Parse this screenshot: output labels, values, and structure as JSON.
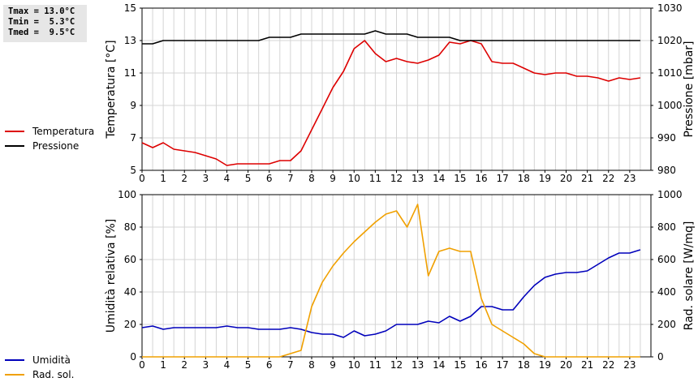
{
  "stats": {
    "tmax": "Tmax = 13.0°C",
    "tmin": "Tmin =  5.3°C",
    "tmed": "Tmed =  9.5°C"
  },
  "legends": {
    "top": [
      {
        "label": "Temperatura",
        "color": "#dd0000"
      },
      {
        "label": "Pressione",
        "color": "#000000"
      }
    ],
    "bottom": [
      {
        "label": "Umidità",
        "color": "#0000bb"
      },
      {
        "label": "Rad. sol.",
        "color": "#f0a000"
      }
    ]
  },
  "chart_data": [
    {
      "type": "line",
      "ylabel_left": "Temperatura [°C]",
      "ylabel_right": "Pressione [mbar]",
      "xlim": [
        0,
        24
      ],
      "ylim_left": [
        5,
        15
      ],
      "ylim_right": [
        980,
        1030
      ],
      "xticks": [
        "0",
        "1",
        "2",
        "3",
        "4",
        "5",
        "6",
        "7",
        "8",
        "9",
        "10",
        "11",
        "12",
        "13",
        "14",
        "15",
        "16",
        "17",
        "18",
        "19",
        "20",
        "21",
        "22",
        "23"
      ],
      "yticks_left": [
        "5",
        "7",
        "9",
        "11",
        "13",
        "15"
      ],
      "yticks_right": [
        "980",
        "990",
        "1000",
        "1010",
        "1020",
        "1030"
      ],
      "grid": true,
      "series": [
        {
          "name": "Temperatura",
          "axis": "left",
          "color": "#dd0000",
          "x": [
            0,
            0.5,
            1,
            1.5,
            2,
            2.5,
            3,
            3.5,
            4,
            4.5,
            5,
            5.5,
            6,
            6.5,
            7,
            7.5,
            8,
            8.5,
            9,
            9.5,
            10,
            10.5,
            11,
            11.5,
            12,
            12.5,
            13,
            13.5,
            14,
            14.5,
            15,
            15.5,
            16,
            16.5,
            17,
            17.5,
            18,
            18.5,
            19,
            19.5,
            20,
            20.5,
            21,
            21.5,
            22,
            22.5,
            23,
            23.5
          ],
          "y": [
            6.7,
            6.4,
            6.7,
            6.3,
            6.2,
            6.1,
            5.9,
            5.7,
            5.3,
            5.4,
            5.4,
            5.4,
            5.4,
            5.6,
            5.6,
            6.2,
            7.5,
            8.8,
            10.1,
            11.1,
            12.5,
            13.0,
            12.2,
            11.7,
            11.9,
            11.7,
            11.6,
            11.8,
            12.1,
            12.9,
            12.8,
            13.0,
            12.8,
            11.7,
            11.6,
            11.6,
            11.3,
            11.0,
            10.9,
            11.0,
            11.0,
            10.8,
            10.8,
            10.7,
            10.5,
            10.7,
            10.6,
            10.7
          ]
        },
        {
          "name": "Pressione",
          "axis": "right",
          "color": "#000000",
          "x": [
            0,
            0.5,
            1,
            1.5,
            2,
            2.5,
            3,
            3.5,
            4,
            4.5,
            5,
            5.5,
            6,
            6.5,
            7,
            7.5,
            8,
            8.5,
            9,
            9.5,
            10,
            10.5,
            11,
            11.5,
            12,
            12.5,
            13,
            13.5,
            14,
            14.5,
            15,
            15.5,
            16,
            16.5,
            17,
            17.5,
            18,
            18.5,
            19,
            19.5,
            20,
            20.5,
            21,
            21.5,
            22,
            22.5,
            23,
            23.5
          ],
          "y": [
            1019,
            1019,
            1020,
            1020,
            1020,
            1020,
            1020,
            1020,
            1020,
            1020,
            1020,
            1020,
            1021,
            1021,
            1021,
            1022,
            1022,
            1022,
            1022,
            1022,
            1022,
            1022,
            1023,
            1022,
            1022,
            1022,
            1021,
            1021,
            1021,
            1021,
            1020,
            1020,
            1020,
            1020,
            1020,
            1020,
            1020,
            1020,
            1020,
            1020,
            1020,
            1020,
            1020,
            1020,
            1020,
            1020,
            1020,
            1020
          ]
        }
      ]
    },
    {
      "type": "line",
      "ylabel_left": "Umidità relativa [%]",
      "ylabel_right": "Rad. solare [W/mq]",
      "xlim": [
        0,
        24
      ],
      "ylim_left": [
        0,
        100
      ],
      "ylim_right": [
        0,
        1000
      ],
      "xticks": [
        "0",
        "1",
        "2",
        "3",
        "4",
        "5",
        "6",
        "7",
        "8",
        "9",
        "10",
        "11",
        "12",
        "13",
        "14",
        "15",
        "16",
        "17",
        "18",
        "19",
        "20",
        "21",
        "22",
        "23"
      ],
      "yticks_left": [
        "0",
        "20",
        "40",
        "60",
        "80",
        "100"
      ],
      "yticks_right": [
        "0",
        "200",
        "400",
        "600",
        "800",
        "1000"
      ],
      "grid": true,
      "series": [
        {
          "name": "Umidità",
          "axis": "left",
          "color": "#0000bb",
          "x": [
            0,
            0.5,
            1,
            1.5,
            2,
            2.5,
            3,
            3.5,
            4,
            4.5,
            5,
            5.5,
            6,
            6.5,
            7,
            7.5,
            8,
            8.5,
            9,
            9.5,
            10,
            10.5,
            11,
            11.5,
            12,
            12.5,
            13,
            13.5,
            14,
            14.5,
            15,
            15.5,
            16,
            16.5,
            17,
            17.5,
            18,
            18.5,
            19,
            19.5,
            20,
            20.5,
            21,
            21.5,
            22,
            22.5,
            23,
            23.5
          ],
          "y": [
            18,
            19,
            17,
            18,
            18,
            18,
            18,
            18,
            19,
            18,
            18,
            17,
            17,
            17,
            18,
            17,
            15,
            14,
            14,
            12,
            16,
            13,
            14,
            16,
            20,
            20,
            20,
            22,
            21,
            25,
            22,
            25,
            31,
            31,
            29,
            29,
            37,
            44,
            49,
            51,
            52,
            52,
            53,
            57,
            61,
            64,
            64,
            66
          ]
        },
        {
          "name": "Rad. sol.",
          "axis": "right",
          "color": "#f0a000",
          "x": [
            0,
            1,
            2,
            3,
            4,
            5,
            6,
            6.5,
            7,
            7.5,
            8,
            8.5,
            9,
            9.5,
            10,
            10.5,
            11,
            11.5,
            12,
            12.5,
            13,
            13.5,
            14,
            14.5,
            15,
            15.5,
            16,
            16.5,
            17,
            17.5,
            18,
            18.5,
            19,
            19.5,
            20,
            21,
            22,
            23,
            23.5
          ],
          "y": [
            0,
            0,
            0,
            0,
            0,
            0,
            0,
            0,
            20,
            40,
            310,
            460,
            560,
            640,
            710,
            770,
            830,
            880,
            900,
            800,
            940,
            500,
            650,
            670,
            650,
            650,
            360,
            200,
            160,
            120,
            80,
            20,
            0,
            0,
            0,
            0,
            0,
            0,
            0
          ]
        }
      ]
    }
  ]
}
